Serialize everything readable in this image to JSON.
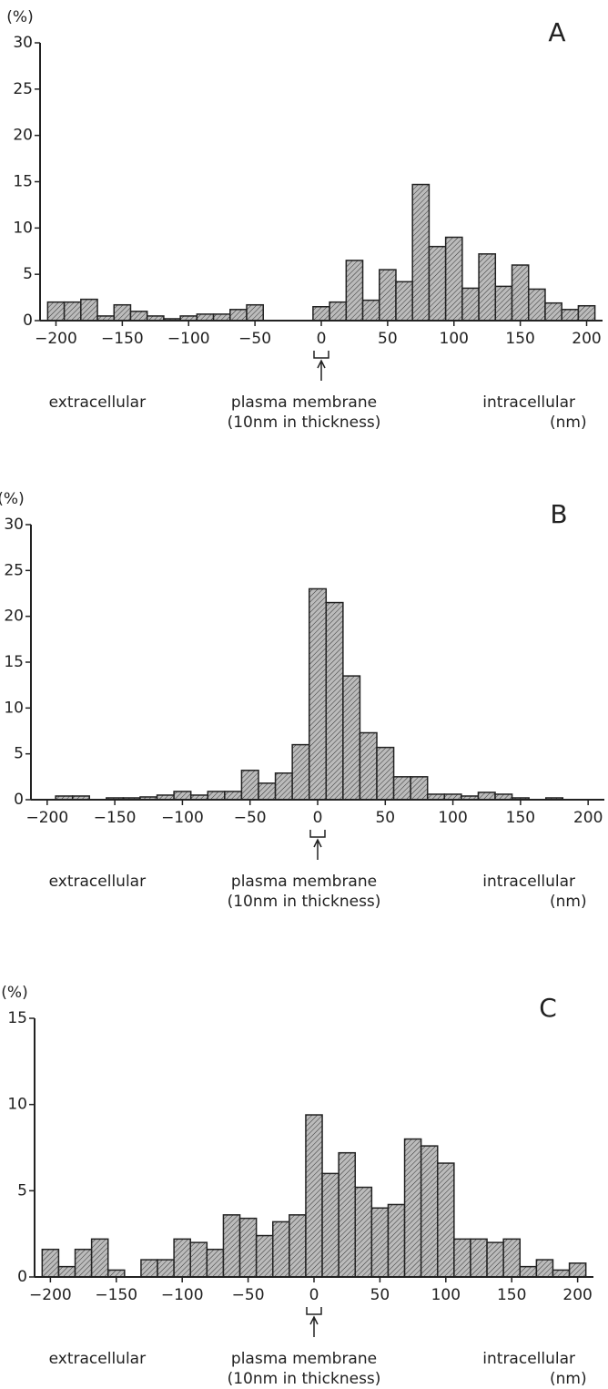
{
  "chart_data": [
    {
      "type": "histogram",
      "title": "A",
      "ylabel": "(%)",
      "bins": [
        -206.25,
        -193.75,
        -181.25,
        -168.75,
        -156.25,
        -143.75,
        -131.25,
        -118.75,
        -106.25,
        -93.75,
        -81.25,
        -68.75,
        -56.25,
        -43.75,
        -31.25,
        -18.75,
        -6.25,
        6.25,
        18.75,
        31.25,
        43.75,
        56.25,
        68.75,
        81.25,
        93.75,
        106.25,
        118.75,
        131.25,
        143.75,
        156.25,
        168.75,
        181.25,
        193.75,
        206.25
      ],
      "counts": [
        2,
        2,
        2.3,
        0.5,
        1.7,
        1,
        0.5,
        0.2,
        0.5,
        0.7,
        0.7,
        1.2,
        1.7,
        0,
        0,
        0,
        1.5,
        2,
        6.5,
        2.2,
        5.5,
        4.2,
        14.7,
        8,
        9,
        3.5,
        7.2,
        3.7,
        6,
        3.4,
        1.9,
        1.2,
        1.6
      ],
      "color": "#bbbbbb",
      "xlim": [
        -212,
        212
      ],
      "xticks": [
        {
          "value": -200,
          "label": "−200"
        },
        {
          "value": -150,
          "label": "−150"
        },
        {
          "value": -100,
          "label": "−100"
        },
        {
          "value": -50,
          "label": "−50"
        },
        0,
        50,
        100,
        150,
        200
      ],
      "ylim": [
        0,
        30
      ],
      "yticks": [
        0,
        5,
        10,
        15,
        20,
        25,
        30
      ],
      "annotations": [
        "extracellular",
        "plasma membrane",
        "(10nm in thickness)",
        "intracellular",
        "(nm)"
      ]
    },
    {
      "type": "histogram",
      "title": "B",
      "ylabel": "(%)",
      "bins": [
        -206.25,
        -193.75,
        -181.25,
        -168.75,
        -156.25,
        -143.75,
        -131.25,
        -118.75,
        -106.25,
        -93.75,
        -81.25,
        -68.75,
        -56.25,
        -43.75,
        -31.25,
        -18.75,
        -6.25,
        6.25,
        18.75,
        31.25,
        43.75,
        56.25,
        68.75,
        81.25,
        93.75,
        106.25,
        118.75,
        131.25,
        143.75,
        156.25,
        168.75,
        181.25,
        193.75,
        206.25
      ],
      "counts": [
        0,
        0.4,
        0.4,
        0,
        0.2,
        0.2,
        0.3,
        0.5,
        0.9,
        0.5,
        0.9,
        0.9,
        3.2,
        1.8,
        2.9,
        6,
        23,
        21.5,
        13.5,
        7.3,
        5.7,
        2.5,
        2.5,
        0.6,
        0.6,
        0.4,
        0.8,
        0.6,
        0.2,
        0,
        0.2,
        0,
        0
      ],
      "color": "#bbbbbb",
      "xlim": [
        -212,
        212
      ],
      "xticks": [
        {
          "value": -200,
          "label": "−200"
        },
        {
          "value": -150,
          "label": "−150"
        },
        {
          "value": -100,
          "label": "−100"
        },
        {
          "value": -50,
          "label": "−50"
        },
        0,
        50,
        100,
        150,
        200
      ],
      "ylim": [
        0,
        30
      ],
      "yticks": [
        0,
        5,
        10,
        15,
        20,
        25,
        30
      ],
      "annotations": [
        "extracellular",
        "plasma membrane",
        "(10nm in thickness)",
        "intracellular",
        "(nm)"
      ]
    },
    {
      "type": "histogram",
      "title": "C",
      "ylabel": "(%)",
      "bins": [
        -206.25,
        -193.75,
        -181.25,
        -168.75,
        -156.25,
        -143.75,
        -131.25,
        -118.75,
        -106.25,
        -93.75,
        -81.25,
        -68.75,
        -56.25,
        -43.75,
        -31.25,
        -18.75,
        -6.25,
        6.25,
        18.75,
        31.25,
        43.75,
        56.25,
        68.75,
        81.25,
        93.75,
        106.25,
        118.75,
        131.25,
        143.75,
        156.25,
        168.75,
        181.25,
        193.75,
        206.25
      ],
      "counts": [
        1.6,
        0.6,
        1.6,
        2.2,
        0.4,
        0,
        1,
        1,
        2.2,
        2,
        1.6,
        3.6,
        3.4,
        2.4,
        3.2,
        3.6,
        9.4,
        6,
        7.2,
        5.2,
        4,
        4.2,
        8,
        7.6,
        6.6,
        2.2,
        2.2,
        2,
        2.2,
        0.6,
        1,
        0.4,
        0.8
      ],
      "color": "#bbbbbb",
      "xlim": [
        -212,
        212
      ],
      "xticks": [
        {
          "value": -200,
          "label": "−200"
        },
        {
          "value": -150,
          "label": "−150"
        },
        {
          "value": -100,
          "label": "−100"
        },
        {
          "value": -50,
          "label": "−50"
        },
        0,
        50,
        100,
        150,
        200
      ],
      "ylim": [
        0,
        15
      ],
      "yticks": [
        0,
        5,
        10,
        15
      ],
      "annotations": [
        "extracellular",
        "plasma membrane",
        "(10nm in thickness)",
        "intracellular",
        "(nm)"
      ]
    }
  ]
}
